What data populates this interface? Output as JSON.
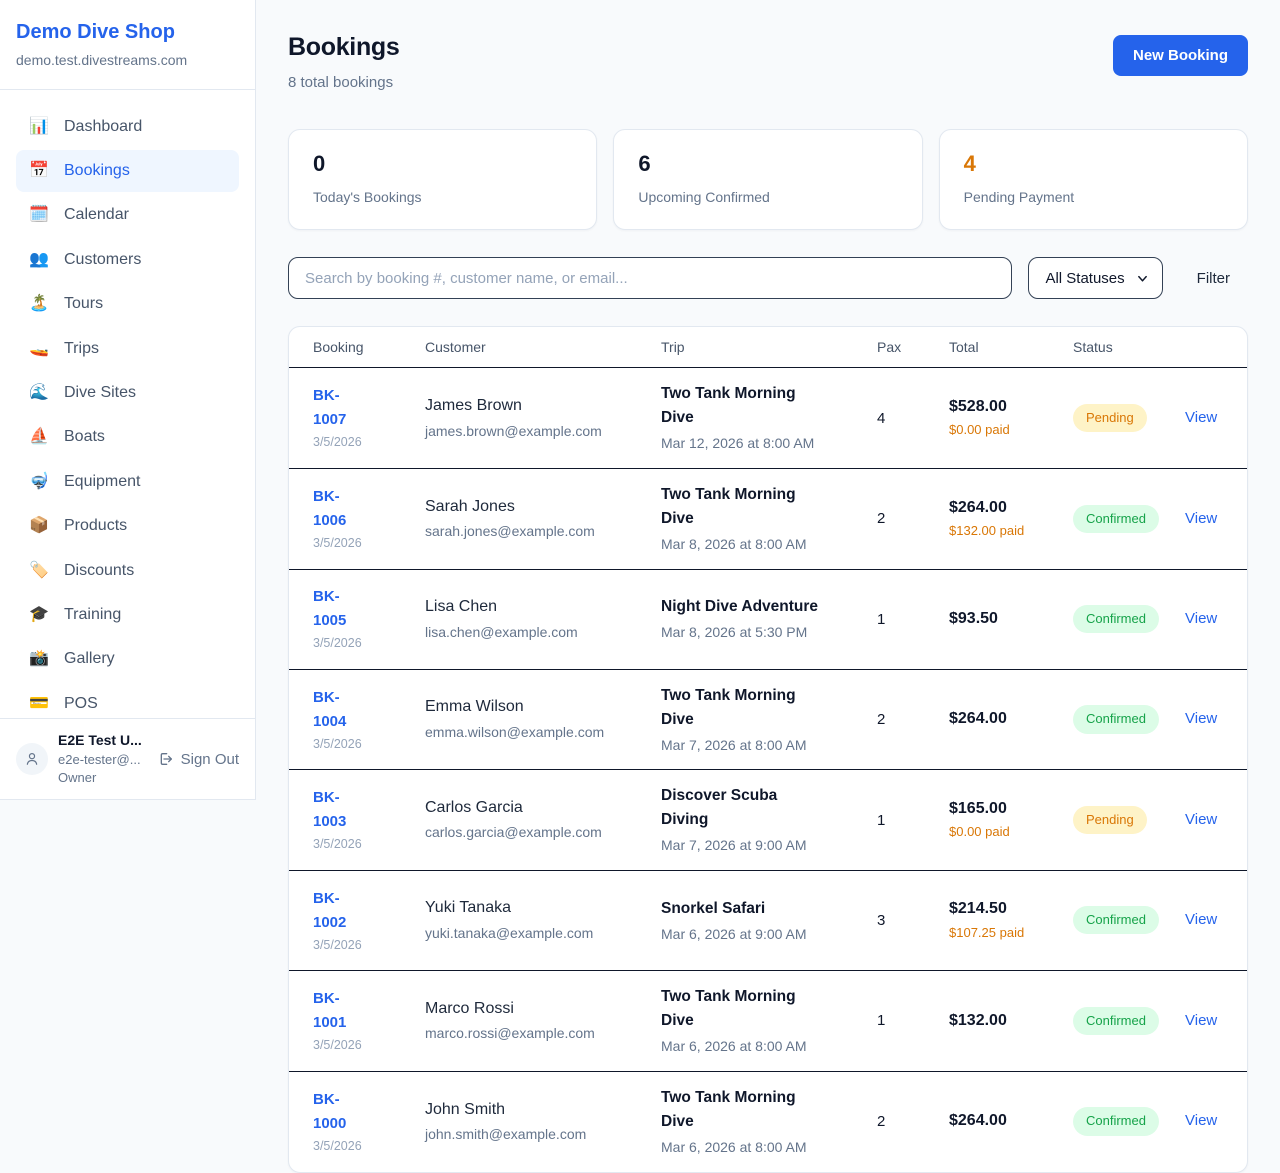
{
  "sidebar": {
    "brand": {
      "name": "Demo Dive Shop",
      "domain": "demo.test.divestreams.com"
    },
    "nav": [
      {
        "icon": "📊",
        "icon_name": "dashboard-icon",
        "label": "Dashboard",
        "active": false
      },
      {
        "icon": "📅",
        "icon_name": "bookings-calendar-icon",
        "label": "Bookings",
        "active": true
      },
      {
        "icon": "🗓️",
        "icon_name": "calendar-icon",
        "label": "Calendar",
        "active": false
      },
      {
        "icon": "👥",
        "icon_name": "customers-icon",
        "label": "Customers",
        "active": false
      },
      {
        "icon": "🏝️",
        "icon_name": "tours-island-icon",
        "label": "Tours",
        "active": false
      },
      {
        "icon": "🚤",
        "icon_name": "trips-boat-icon",
        "label": "Trips",
        "active": false
      },
      {
        "icon": "🌊",
        "icon_name": "dive-sites-wave-icon",
        "label": "Dive Sites",
        "active": false
      },
      {
        "icon": "⛵",
        "icon_name": "boats-sailboat-icon",
        "label": "Boats",
        "active": false
      },
      {
        "icon": "🤿",
        "icon_name": "equipment-mask-icon",
        "label": "Equipment",
        "active": false
      },
      {
        "icon": "📦",
        "icon_name": "products-package-icon",
        "label": "Products",
        "active": false
      },
      {
        "icon": "🏷️",
        "icon_name": "discounts-tag-icon",
        "label": "Discounts",
        "active": false
      },
      {
        "icon": "🎓",
        "icon_name": "training-cap-icon",
        "label": "Training",
        "active": false
      },
      {
        "icon": "📸",
        "icon_name": "gallery-camera-icon",
        "label": "Gallery",
        "active": false
      },
      {
        "icon": "💳",
        "icon_name": "pos-card-icon",
        "label": "POS",
        "active": false
      }
    ],
    "user": {
      "name": "E2E Test U...",
      "email": "e2e-tester@...",
      "role": "Owner",
      "sign_out_label": "Sign Out"
    }
  },
  "header": {
    "title": "Bookings",
    "subtitle": "8 total bookings",
    "new_booking_label": "New Booking"
  },
  "stats": [
    {
      "value": "0",
      "label": "Today's Bookings",
      "color": "#0f172a"
    },
    {
      "value": "6",
      "label": "Upcoming Confirmed",
      "color": "#0f172a"
    },
    {
      "value": "4",
      "label": "Pending Payment",
      "color": "#d97706"
    }
  ],
  "controls": {
    "search_placeholder": "Search by booking #, customer name, or email...",
    "status_filter_value": "All Statuses",
    "filter_label": "Filter"
  },
  "table": {
    "columns": [
      "Booking",
      "Customer",
      "Trip",
      "Pax",
      "Total",
      "Status"
    ],
    "rows": [
      {
        "id": "BK-1007",
        "date": "3/5/2026",
        "customer": "James Brown",
        "email": "james.brown@example.com",
        "trip": "Two Tank Morning Dive",
        "trip_date": "Mar 12, 2026 at 8:00 AM",
        "pax": "4",
        "total": "$528.00",
        "paid": "$0.00 paid",
        "status": "Pending",
        "action": "View"
      },
      {
        "id": "BK-1006",
        "date": "3/5/2026",
        "customer": "Sarah Jones",
        "email": "sarah.jones@example.com",
        "trip": "Two Tank Morning Dive",
        "trip_date": "Mar 8, 2026 at 8:00 AM",
        "pax": "2",
        "total": "$264.00",
        "paid": "$132.00 paid",
        "status": "Confirmed",
        "action": "View"
      },
      {
        "id": "BK-1005",
        "date": "3/5/2026",
        "customer": "Lisa Chen",
        "email": "lisa.chen@example.com",
        "trip": "Night Dive Adventure",
        "trip_date": "Mar 8, 2026 at 5:30 PM",
        "pax": "1",
        "total": "$93.50",
        "paid": "",
        "status": "Confirmed",
        "action": "View"
      },
      {
        "id": "BK-1004",
        "date": "3/5/2026",
        "customer": "Emma Wilson",
        "email": "emma.wilson@example.com",
        "trip": "Two Tank Morning Dive",
        "trip_date": "Mar 7, 2026 at 8:00 AM",
        "pax": "2",
        "total": "$264.00",
        "paid": "",
        "status": "Confirmed",
        "action": "View"
      },
      {
        "id": "BK-1003",
        "date": "3/5/2026",
        "customer": "Carlos Garcia",
        "email": "carlos.garcia@example.com",
        "trip": "Discover Scuba Diving",
        "trip_date": "Mar 7, 2026 at 9:00 AM",
        "pax": "1",
        "total": "$165.00",
        "paid": "$0.00 paid",
        "status": "Pending",
        "action": "View"
      },
      {
        "id": "BK-1002",
        "date": "3/5/2026",
        "customer": "Yuki Tanaka",
        "email": "yuki.tanaka@example.com",
        "trip": "Snorkel Safari",
        "trip_date": "Mar 6, 2026 at 9:00 AM",
        "pax": "3",
        "total": "$214.50",
        "paid": "$107.25 paid",
        "status": "Confirmed",
        "action": "View"
      },
      {
        "id": "BK-1001",
        "date": "3/5/2026",
        "customer": "Marco Rossi",
        "email": "marco.rossi@example.com",
        "trip": "Two Tank Morning Dive",
        "trip_date": "Mar 6, 2026 at 8:00 AM",
        "pax": "1",
        "total": "$132.00",
        "paid": "",
        "status": "Confirmed",
        "action": "View"
      },
      {
        "id": "BK-1000",
        "date": "3/5/2026",
        "customer": "John Smith",
        "email": "john.smith@example.com",
        "trip": "Two Tank Morning Dive",
        "trip_date": "Mar 6, 2026 at 8:00 AM",
        "pax": "2",
        "total": "$264.00",
        "paid": "",
        "status": "Confirmed",
        "action": "View"
      }
    ]
  },
  "colors": {
    "accent": "#2563eb",
    "pending_text": "#d97706",
    "pending_bg": "#fef3c7",
    "confirmed_text": "#16a34a",
    "confirmed_bg": "#dcfce7",
    "page_bg": "#f8fafc"
  }
}
